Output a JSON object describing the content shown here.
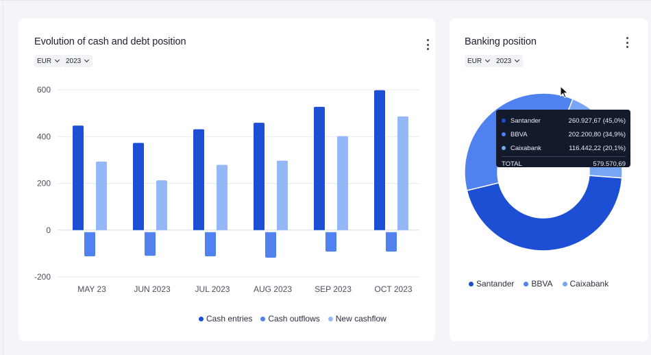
{
  "cash_card": {
    "title": "Evolution of cash and debt position",
    "currency": "EUR",
    "year": "2023"
  },
  "bank_card": {
    "title": "Banking position",
    "currency": "EUR",
    "year": "2023"
  },
  "colors": {
    "cash_entries": "#1c4fd3",
    "cash_outflows": "#4f82ef",
    "new_cashflow": "#94b8f6",
    "santander": "#1c4fd3",
    "bbva": "#4f82ef",
    "caixabank": "#79a6f4"
  },
  "chart_data": [
    {
      "type": "bar",
      "categories": [
        "MAY 23",
        "JUN 2023",
        "JUL 2023",
        "AUG 2023",
        "SEP 2023",
        "OCT 2023"
      ],
      "series": [
        {
          "name": "Cash entries",
          "values": [
            447,
            373,
            431,
            459,
            527,
            598
          ],
          "color": "#1c4fd3"
        },
        {
          "name": "Cash outflows",
          "values": [
            -112,
            -110,
            -112,
            -118,
            -92,
            -92
          ],
          "color": "#4f82ef"
        },
        {
          "name": "New cashflow",
          "values": [
            293,
            213,
            279,
            297,
            402,
            486
          ],
          "color": "#94b8f6"
        }
      ],
      "yticks": [
        600,
        400,
        200,
        0,
        -200
      ],
      "ylim": [
        -200,
        600
      ],
      "grid": true,
      "legend": "bottom"
    },
    {
      "type": "pie",
      "style": "donut",
      "slices": [
        {
          "name": "Santander",
          "value": 260927.67,
          "label": "260.927,67 (45,0%)",
          "color": "#1c4fd3"
        },
        {
          "name": "BBVA",
          "value": 202200.8,
          "label": "202.200,80 (34,9%)",
          "color": "#4f82ef"
        },
        {
          "name": "Caixabank",
          "value": 116442.22,
          "label": "116.442,22 (20,1%)",
          "color": "#79a6f4"
        }
      ],
      "total_label": "TOTAL",
      "total_value": "579.570,69",
      "legend": "bottom"
    }
  ]
}
